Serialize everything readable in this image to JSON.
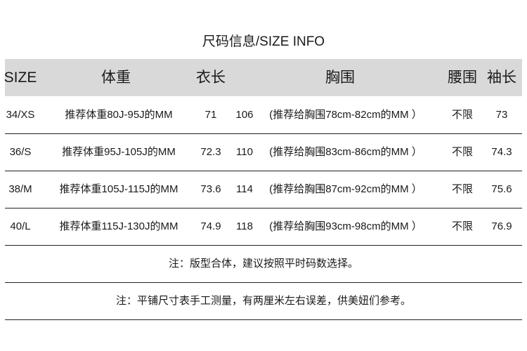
{
  "title": "尺码信息/SIZE INFO",
  "headers": [
    "SIZE",
    "体重",
    "衣长",
    "胸围",
    "腰围",
    "袖长"
  ],
  "rows": [
    {
      "size": "34/XS",
      "weight": "推荐体重80J-95J的MM",
      "length": "71",
      "bust": "106",
      "bust_note": "(推荐给胸围78cm-82cm的MM ）",
      "waist": "不限",
      "sleeve": "73"
    },
    {
      "size": "36/S",
      "weight": "推荐体重95J-105J的MM",
      "length": "72.3",
      "bust": "110",
      "bust_note": "(推荐给胸围83cm-86cm的MM ）",
      "waist": "不限",
      "sleeve": "74.3"
    },
    {
      "size": "38/M",
      "weight": "推荐体重105J-115J的MM",
      "length": "73.6",
      "bust": "114",
      "bust_note": "(推荐给胸围87cm-92cm的MM ）",
      "waist": "不限",
      "sleeve": "75.6"
    },
    {
      "size": "40/L",
      "weight": "推荐体重115J-130J的MM",
      "length": "74.9",
      "bust": "118",
      "bust_note": "(推荐给胸围93cm-98cm的MM ）",
      "waist": "不限",
      "sleeve": "76.9"
    }
  ],
  "notes": [
    "注：版型合体，建议按照平时码数选择。",
    "注：平铺尺寸表手工测量，有两厘米左右误差，供美妞们参考。"
  ],
  "colors": {
    "header_bg": "#d9d9d9",
    "text": "#1a1a1a"
  }
}
